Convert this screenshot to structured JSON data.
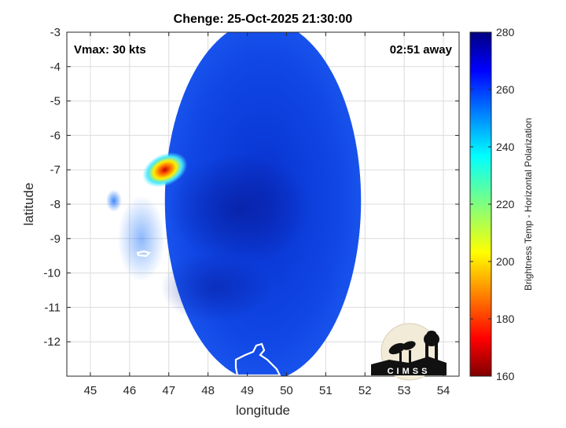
{
  "chart_data": {
    "type": "heatmap",
    "title": "Chenge: 25-Oct-2025 21:30:00",
    "xlabel": "longitude",
    "ylabel": "latitude",
    "xlim": [
      44.4,
      54.4
    ],
    "ylim": [
      -13,
      -3
    ],
    "x_ticks": [
      45,
      46,
      47,
      48,
      49,
      50,
      51,
      52,
      53,
      54
    ],
    "y_ticks": [
      -3,
      -4,
      -5,
      -6,
      -7,
      -8,
      -9,
      -10,
      -11,
      -12
    ],
    "grid": true,
    "annotations": {
      "vmax": "Vmax: 30 kts",
      "away": "02:51 away"
    },
    "colorbar": {
      "label": "Brightness Temp - Horizontal Polarization",
      "range": [
        160,
        280
      ],
      "ticks": [
        160,
        180,
        200,
        220,
        240,
        260,
        280
      ],
      "colormap": "jet"
    },
    "swath": {
      "center_lon": 49.4,
      "center_lat": -7.9
    },
    "cold_feature": {
      "lon": 46.9,
      "lat": -7.0,
      "min_temp": 185
    },
    "logo_text": "CIMSS"
  }
}
